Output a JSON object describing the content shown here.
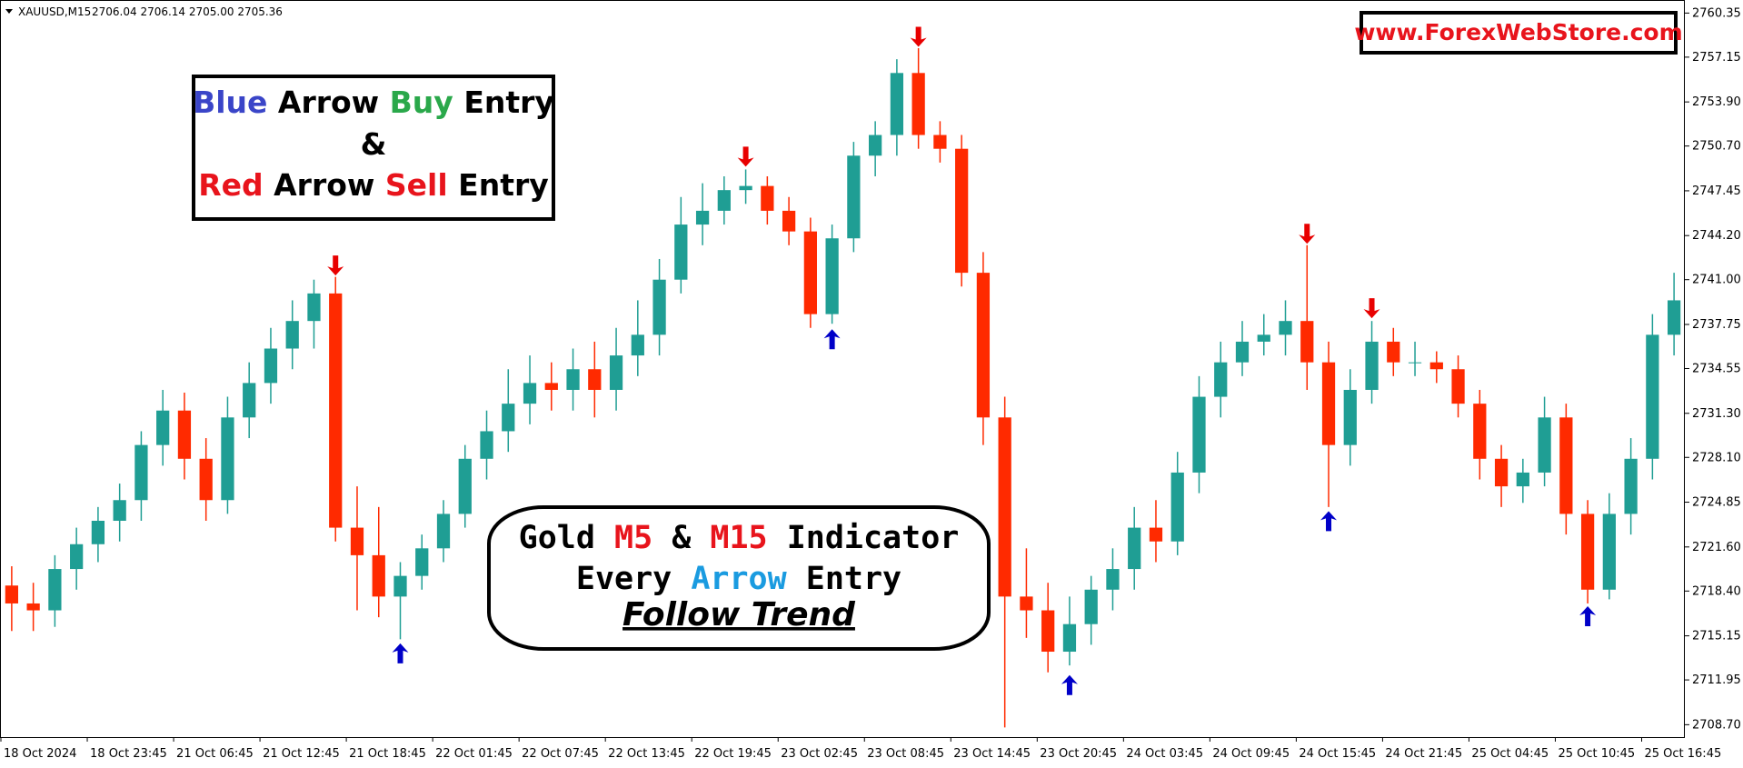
{
  "chart_data": {
    "type": "candlestick",
    "symbol": "XAUUSD,M15",
    "quote": "2706.04 2706.14 2705.00 2705.36",
    "categories": [
      "18 Oct 2024",
      null,
      null,
      null,
      "18 Oct 23:45",
      null,
      null,
      null,
      "21 Oct 06:45",
      null,
      null,
      null,
      "21 Oct 12:45",
      null,
      null,
      null,
      "21 Oct 18:45",
      null,
      null,
      null,
      "22 Oct 01:45",
      null,
      null,
      null,
      "22 Oct 07:45",
      null,
      null,
      null,
      "22 Oct 13:45",
      null,
      null,
      null,
      "22 Oct 19:45",
      null,
      null,
      null,
      "23 Oct 02:45",
      null,
      null,
      null,
      "23 Oct 08:45",
      null,
      null,
      null,
      "23 Oct 14:45",
      null,
      null,
      null,
      "23 Oct 20:45",
      null,
      null,
      null,
      "24 Oct 03:45",
      null,
      null,
      null,
      "24 Oct 09:45",
      null,
      null,
      null,
      "24 Oct 15:45",
      null,
      null,
      null,
      "24 Oct 21:45",
      null,
      null,
      null,
      "25 Oct 04:45",
      null,
      null,
      null,
      "25 Oct 10:45",
      null,
      null,
      null,
      "25 Oct 16:45",
      null
    ],
    "open": [
      2718.8,
      2717.5,
      2717,
      2720,
      2721.8,
      2723.5,
      2725,
      2729,
      2731.5,
      2728,
      2725,
      2731,
      2733.5,
      2736,
      2738,
      2740,
      2723,
      2721,
      2718,
      2719.5,
      2721.5,
      2724,
      2728,
      2730,
      2732,
      2733.5,
      2733,
      2734.5,
      2733,
      2735.5,
      2737,
      2741,
      2745,
      2746,
      2747.5,
      2747.8,
      2746,
      2744.5,
      2738.5,
      2744,
      2750,
      2751.5,
      2756,
      2751.5,
      2750.5,
      2741.5,
      2731,
      2718,
      2717,
      2714,
      2716,
      2718.5,
      2720,
      2723,
      2722,
      2727,
      2732.5,
      2735,
      2736.5,
      2737,
      2738,
      2735,
      2729,
      2733,
      2736.5,
      2735,
      2735,
      2734.5,
      2732,
      2728,
      2726,
      2727,
      2731,
      2724,
      2718.5,
      2724,
      2728,
      2737
    ],
    "high": [
      2720.2,
      2719,
      2721,
      2723,
      2724.5,
      2726.2,
      2730,
      2733,
      2732.8,
      2729.5,
      2732.5,
      2735,
      2737.5,
      2739.5,
      2741,
      2741.2,
      2726,
      2724.5,
      2720.5,
      2722.5,
      2725,
      2729,
      2731.5,
      2734.5,
      2735.5,
      2735,
      2736,
      2736.5,
      2737.5,
      2739.5,
      2742.5,
      2747,
      2748,
      2748.5,
      2749,
      2748.5,
      2747,
      2745.5,
      2745,
      2751,
      2752.5,
      2757,
      2757.8,
      2752.5,
      2751.5,
      2743,
      2732.5,
      2721.5,
      2719,
      2718,
      2719.5,
      2721.5,
      2724.5,
      2725,
      2728.5,
      2734,
      2736.5,
      2738,
      2738.5,
      2739.5,
      2743.5,
      2736.5,
      2734.5,
      2738,
      2737.5,
      2736.5,
      2735.8,
      2735.5,
      2733,
      2729,
      2728,
      2732.5,
      2732,
      2725,
      2725.5,
      2729.5,
      2738.5,
      2741.5
    ],
    "low": [
      2715.5,
      2715.5,
      2715.8,
      2718.5,
      2720.5,
      2722,
      2723.5,
      2727.5,
      2726.5,
      2723.5,
      2724,
      2729.5,
      2732,
      2734.5,
      2736,
      2722,
      2717,
      2716.5,
      2714.9,
      2718.5,
      2720.5,
      2723,
      2726.5,
      2728.5,
      2730.5,
      2731.5,
      2731.5,
      2731,
      2731.5,
      2734,
      2735.5,
      2740,
      2743.5,
      2745,
      2746.5,
      2745,
      2743.5,
      2737.5,
      2737.8,
      2743,
      2748.5,
      2750,
      2750.5,
      2749.5,
      2740.5,
      2729,
      2708.5,
      2715,
      2712.5,
      2713,
      2714.5,
      2717,
      2718.5,
      2720.5,
      2721,
      2725.5,
      2731,
      2734,
      2735.5,
      2735.5,
      2733,
      2724.5,
      2727.5,
      2732,
      2734,
      2734,
      2733.5,
      2731,
      2726.5,
      2724.5,
      2724.8,
      2726,
      2722.5,
      2717.5,
      2717.8,
      2722.5,
      2726.5,
      2735.5
    ],
    "close": [
      2717.5,
      2717,
      2720,
      2721.8,
      2723.5,
      2725,
      2729,
      2731.5,
      2728,
      2725,
      2731,
      2733.5,
      2736,
      2738,
      2740,
      2723,
      2721,
      2718,
      2719.5,
      2721.5,
      2724,
      2728,
      2730,
      2732,
      2733.5,
      2733,
      2734.5,
      2733,
      2735.5,
      2737,
      2741,
      2745,
      2746,
      2747.5,
      2747.8,
      2746,
      2744.5,
      2738.5,
      2744,
      2750,
      2751.5,
      2756,
      2751.5,
      2750.5,
      2741.5,
      2731,
      2718,
      2717,
      2714,
      2716,
      2718.5,
      2720,
      2723,
      2722,
      2727,
      2732.5,
      2735,
      2736.5,
      2737,
      2738,
      2735,
      2729,
      2733,
      2736.5,
      2735,
      2735,
      2734.5,
      2732,
      2728,
      2726,
      2727,
      2731,
      2724,
      2718.5,
      2724,
      2728,
      2737,
      2739.5
    ],
    "up_color": "#1f9e94",
    "down_color": "#ff2a00",
    "signals": [
      {
        "direction": "up",
        "color": "#0000c8",
        "x": [
          18,
          38,
          49,
          61,
          73
        ],
        "values": [
          2714.6,
          2737.4,
          2712.3,
          2724.2,
          2717.3
        ]
      },
      {
        "direction": "down",
        "color": "#e80000",
        "x": [
          15,
          34,
          42,
          60,
          63
        ],
        "values": [
          2741.3,
          2749.2,
          2757.9,
          2743.6,
          2738.2
        ]
      }
    ],
    "ylim": [
      2707.8,
      2761.1
    ],
    "yticks": [
      2760.35,
      2757.15,
      {
        "value": 2753.9,
        "label": "2753.90"
      },
      {
        "value": 2750.7,
        "label": "2750.70"
      },
      2747.45,
      {
        "value": 2744.2,
        "label": "2744.20"
      },
      {
        "value": 2741.0,
        "label": "2741.00"
      },
      2737.75,
      2734.55,
      {
        "value": 2731.3,
        "label": "2731.30"
      },
      {
        "value": 2728.1,
        "label": "2728.10"
      },
      2724.85,
      {
        "value": 2721.6,
        "label": "2721.60"
      },
      {
        "value": 2718.4,
        "label": "2718.40"
      },
      2715.15,
      2711.95,
      {
        "value": 2708.7,
        "label": "2708.70"
      }
    ],
    "annotations": {
      "entry_box": [
        [
          {
            "text": "Blue",
            "color": "#3a45c8"
          },
          {
            "text": "Arrow",
            "color": "#000000"
          },
          {
            "text": "Buy",
            "color": "#2aa84a"
          },
          {
            "text": "Entry",
            "color": "#000000"
          }
        ],
        [
          {
            "text": "&",
            "color": "#000000"
          }
        ],
        [
          {
            "text": "Red",
            "color": "#e8141c"
          },
          {
            "text": "Arrow",
            "color": "#000000"
          },
          {
            "text": "Sell",
            "color": "#e8141c"
          },
          {
            "text": "Entry",
            "color": "#000000"
          }
        ]
      ],
      "indicator_box": [
        [
          {
            "text": "Gold",
            "color": "#000000"
          },
          {
            "text": "M5",
            "color": "#e8141c"
          },
          {
            "text": "&",
            "color": "#000000"
          },
          {
            "text": "M15",
            "color": "#e8141c"
          },
          {
            "text": "Indicator",
            "color": "#000000"
          }
        ],
        [
          {
            "text": "Every",
            "color": "#000000"
          },
          {
            "text": "Arrow",
            "color": "#1a9be0"
          },
          {
            "text": "Entry",
            "color": "#000000"
          }
        ]
      ],
      "trend": "Follow Trend",
      "website": "www.ForexWebStore.com"
    }
  }
}
